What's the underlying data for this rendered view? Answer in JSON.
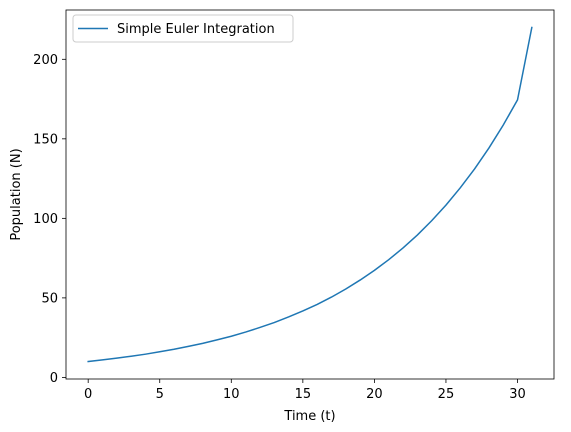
{
  "chart_data": {
    "type": "line",
    "title": "",
    "xlabel": "Time (t)",
    "ylabel": "Population (N)",
    "xlim": [
      -1.55,
      32.55
    ],
    "ylim": [
      -1.0,
      231.0
    ],
    "xticks": [
      0,
      5,
      10,
      15,
      20,
      25,
      30
    ],
    "yticks": [
      0,
      50,
      100,
      150,
      200
    ],
    "grid": false,
    "legend_position": "top-left",
    "series": [
      {
        "name": "Simple Euler Integration",
        "color": "#1f77b4",
        "x": [
          0,
          1,
          2,
          3,
          4,
          5,
          6,
          7,
          8,
          9,
          10,
          11,
          12,
          13,
          14,
          15,
          16,
          17,
          18,
          19,
          20,
          21,
          22,
          23,
          24,
          25,
          26,
          27,
          28,
          29,
          30,
          31
        ],
        "y": [
          10.0,
          11.0,
          12.1,
          13.3,
          14.6,
          16.1,
          17.7,
          19.5,
          21.4,
          23.6,
          25.9,
          28.5,
          31.4,
          34.5,
          38.0,
          41.8,
          45.9,
          50.5,
          55.6,
          61.2,
          67.3,
          74.0,
          81.4,
          89.5,
          98.5,
          108.3,
          119.2,
          131.1,
          144.2,
          158.6,
          174.5,
          220.0
        ]
      }
    ]
  }
}
